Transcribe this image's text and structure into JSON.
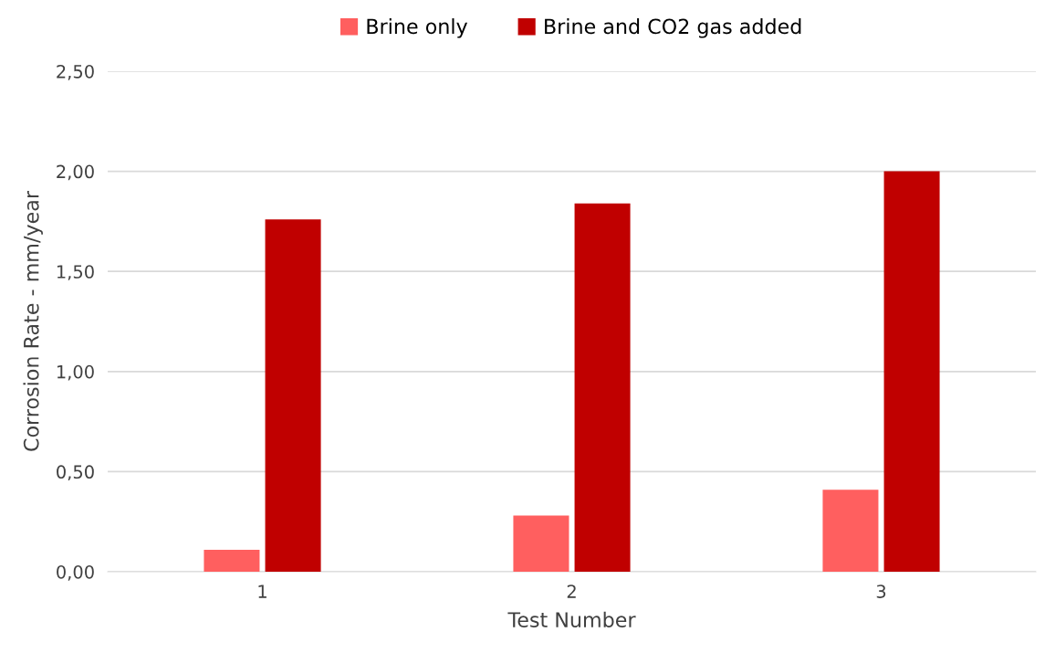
{
  "chart_data": {
    "type": "bar",
    "xlabel": "Test Number",
    "ylabel": "Corrosion Rate - mm/year",
    "categories": [
      "1",
      "2",
      "3"
    ],
    "series": [
      {
        "name": "Brine only",
        "color": "#ff5f5f",
        "values": [
          0.11,
          0.28,
          0.41
        ]
      },
      {
        "name": "Brine and CO2 gas added",
        "color": "#c00000",
        "values": [
          1.76,
          1.84,
          2.0
        ]
      }
    ],
    "ylim": [
      0,
      2.5
    ],
    "yticks": [
      {
        "value": 0,
        "label": "0,00"
      },
      {
        "value": 0.5,
        "label": "0,50"
      },
      {
        "value": 1,
        "label": "1,00"
      },
      {
        "value": 1.5,
        "label": "1,50"
      },
      {
        "value": 2,
        "label": "2,00"
      },
      {
        "value": 2.5,
        "label": "2,50"
      }
    ],
    "grid": "y",
    "legend": "top"
  }
}
